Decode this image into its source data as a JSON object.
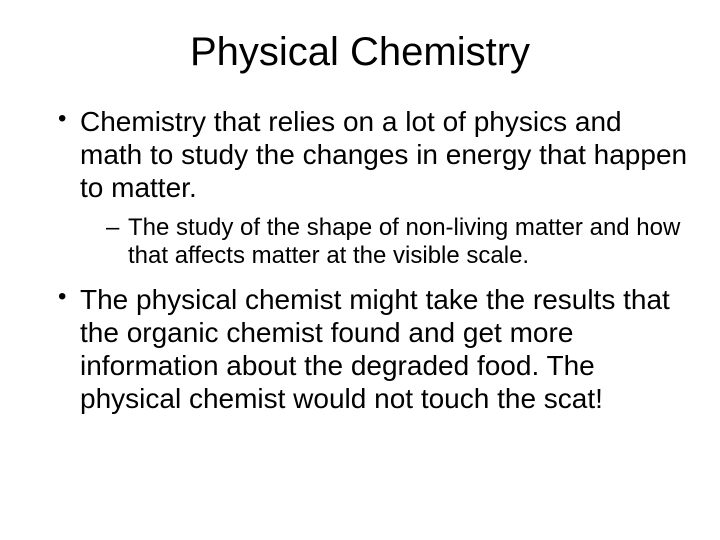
{
  "slide": {
    "title": "Physical Chemistry",
    "bullets": [
      {
        "text": "Chemistry that relies on a lot of physics and math to study the changes in energy that happen to matter.",
        "sub": [
          {
            "text": "The study of the shape of non-living matter and how that affects matter at the visible scale."
          }
        ]
      },
      {
        "text": "The physical chemist might take the results that the organic chemist found and get more information about the degraded food. The physical chemist would not touch the scat!"
      }
    ]
  },
  "style": {
    "background_color": "#ffffff",
    "text_color": "#000000",
    "font_family": "Arial",
    "title_fontsize": 40,
    "level1_fontsize": 28,
    "level2_fontsize": 24
  }
}
